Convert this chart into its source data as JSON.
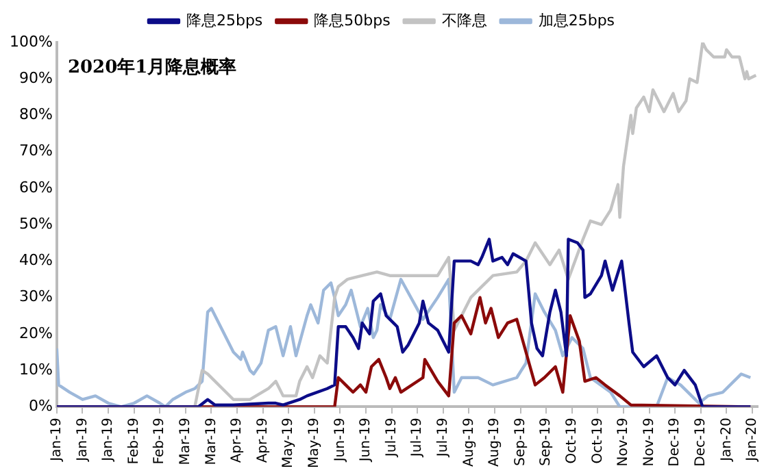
{
  "chart_data": {
    "type": "line",
    "annotations": [
      "2020年1月降息概率"
    ],
    "xlim": [
      "2019-01-02",
      "2020-01-18"
    ],
    "xticks": [
      {
        "value": "2019-01-02",
        "label": "Jan-19"
      },
      {
        "value": "2019-01-16",
        "label": "Jan-19"
      },
      {
        "value": "2019-01-30",
        "label": "Jan-19"
      },
      {
        "value": "2019-02-13",
        "label": "Feb-19"
      },
      {
        "value": "2019-02-27",
        "label": "Feb-19"
      },
      {
        "value": "2019-03-13",
        "label": "Mar-19"
      },
      {
        "value": "2019-03-27",
        "label": "Mar-19"
      },
      {
        "value": "2019-04-10",
        "label": "Apr-19"
      },
      {
        "value": "2019-04-24",
        "label": "Apr-19"
      },
      {
        "value": "2019-05-08",
        "label": "May-19"
      },
      {
        "value": "2019-05-22",
        "label": "May-19"
      },
      {
        "value": "2019-06-05",
        "label": "Jun-19"
      },
      {
        "value": "2019-06-19",
        "label": "Jun-19"
      },
      {
        "value": "2019-07-03",
        "label": "Jul-19"
      },
      {
        "value": "2019-07-17",
        "label": "Jul-19"
      },
      {
        "value": "2019-07-31",
        "label": "Jul-19"
      },
      {
        "value": "2019-08-14",
        "label": "Aug-19"
      },
      {
        "value": "2019-08-28",
        "label": "Aug-19"
      },
      {
        "value": "2019-09-11",
        "label": "Sep-19"
      },
      {
        "value": "2019-09-25",
        "label": "Sep-19"
      },
      {
        "value": "2019-10-09",
        "label": "Oct-19"
      },
      {
        "value": "2019-10-23",
        "label": "Oct-19"
      },
      {
        "value": "2019-11-06",
        "label": "Nov-19"
      },
      {
        "value": "2019-11-20",
        "label": "Nov-19"
      },
      {
        "value": "2019-12-04",
        "label": "Dec-19"
      },
      {
        "value": "2019-12-18",
        "label": "Dec-19"
      },
      {
        "value": "2020-01-01",
        "label": "Jan-20"
      },
      {
        "value": "2020-01-15",
        "label": "Jan-20"
      }
    ],
    "ylim": [
      0,
      100
    ],
    "yticks": [
      {
        "value": 0,
        "label": "0%"
      },
      {
        "value": 10,
        "label": "10%"
      },
      {
        "value": 20,
        "label": "20%"
      },
      {
        "value": 30,
        "label": "30%"
      },
      {
        "value": 40,
        "label": "40%"
      },
      {
        "value": 50,
        "label": "50%"
      },
      {
        "value": 60,
        "label": "60%"
      },
      {
        "value": 70,
        "label": "70%"
      },
      {
        "value": 80,
        "label": "80%"
      },
      {
        "value": 90,
        "label": "90%"
      },
      {
        "value": 100,
        "label": "100%"
      }
    ],
    "grid": false,
    "legend": "top",
    "marker": "none",
    "line_style": "solid",
    "series": [
      {
        "name": "降息25bps",
        "color": "#0c0c88",
        "x": [
          "2019-01-02",
          "2019-03-20",
          "2019-03-25",
          "2019-03-29",
          "2019-04-08",
          "2019-04-27",
          "2019-05-01",
          "2019-05-05",
          "2019-05-14",
          "2019-05-18",
          "2019-05-29",
          "2019-06-02",
          "2019-06-04",
          "2019-06-08",
          "2019-06-12",
          "2019-06-15",
          "2019-06-17",
          "2019-06-21",
          "2019-06-23",
          "2019-06-27",
          "2019-06-30",
          "2019-07-04",
          "2019-07-06",
          "2019-07-09",
          "2019-07-12",
          "2019-07-18",
          "2019-07-20",
          "2019-07-23",
          "2019-07-28",
          "2019-08-03",
          "2019-08-06",
          "2019-08-08",
          "2019-08-15",
          "2019-08-19",
          "2019-08-21",
          "2019-08-25",
          "2019-08-27",
          "2019-09-01",
          "2019-09-04",
          "2019-09-07",
          "2019-09-14",
          "2019-09-17",
          "2019-09-20",
          "2019-09-23",
          "2019-09-27",
          "2019-09-30",
          "2019-10-03",
          "2019-10-06",
          "2019-10-07",
          "2019-10-12",
          "2019-10-15",
          "2019-10-16",
          "2019-10-19",
          "2019-10-25",
          "2019-10-27",
          "2019-10-31",
          "2019-11-05",
          "2019-11-09",
          "2019-11-11",
          "2019-11-17",
          "2019-11-24",
          "2019-11-30",
          "2019-12-04",
          "2019-12-09",
          "2019-12-15",
          "2019-12-19",
          "2020-01-14"
        ],
        "values": [
          0,
          0,
          2,
          0.5,
          0.5,
          1,
          1,
          0.5,
          2,
          3,
          5,
          6,
          22,
          22,
          19,
          16,
          23,
          20,
          29,
          31,
          25,
          23,
          22,
          15,
          17,
          23,
          29,
          23,
          21,
          15,
          40,
          40,
          40,
          39,
          41,
          46,
          40,
          41,
          39,
          42,
          40,
          23,
          16,
          14,
          26,
          32,
          26,
          14,
          46,
          45,
          43,
          30,
          31,
          36,
          40,
          32,
          40,
          23,
          15,
          11,
          14,
          8,
          6,
          10,
          6,
          0,
          0
        ]
      },
      {
        "name": "降息50bps",
        "color": "#8b0a0a",
        "x": [
          "2019-01-02",
          "2019-06-02",
          "2019-06-04",
          "2019-06-08",
          "2019-06-12",
          "2019-06-16",
          "2019-06-19",
          "2019-06-22",
          "2019-06-26",
          "2019-06-30",
          "2019-07-02",
          "2019-07-05",
          "2019-07-08",
          "2019-07-20",
          "2019-07-21",
          "2019-07-28",
          "2019-08-03",
          "2019-08-06",
          "2019-08-10",
          "2019-08-15",
          "2019-08-20",
          "2019-08-23",
          "2019-08-26",
          "2019-08-30",
          "2019-09-04",
          "2019-09-09",
          "2019-09-14",
          "2019-09-19",
          "2019-09-24",
          "2019-09-30",
          "2019-10-04",
          "2019-10-08",
          "2019-10-13",
          "2019-10-16",
          "2019-10-22",
          "2019-10-27",
          "2019-11-04",
          "2019-11-10",
          "2020-01-14"
        ],
        "values": [
          0,
          0,
          8,
          6,
          4,
          6,
          4,
          11,
          13,
          8,
          5,
          8,
          4,
          8,
          13,
          7,
          3,
          23,
          25,
          20,
          30,
          23,
          27,
          19,
          23,
          24,
          15,
          6,
          8,
          11,
          4,
          25,
          18,
          7,
          8,
          6,
          3,
          0.5,
          0
        ]
      },
      {
        "name": "不降息",
        "color": "#c3c3c3",
        "x": [
          "2019-01-02",
          "2019-03-18",
          "2019-03-22",
          "2019-03-25",
          "2019-04-02",
          "2019-04-08",
          "2019-04-17",
          "2019-04-27",
          "2019-05-01",
          "2019-05-05",
          "2019-05-12",
          "2019-05-14",
          "2019-05-18",
          "2019-05-21",
          "2019-05-25",
          "2019-05-29",
          "2019-06-02",
          "2019-06-04",
          "2019-06-09",
          "2019-06-17",
          "2019-06-25",
          "2019-07-02",
          "2019-07-09",
          "2019-07-28",
          "2019-08-03",
          "2019-08-06",
          "2019-08-15",
          "2019-08-21",
          "2019-08-27",
          "2019-09-09",
          "2019-09-14",
          "2019-09-19",
          "2019-09-27",
          "2019-10-02",
          "2019-10-07",
          "2019-10-15",
          "2019-10-19",
          "2019-10-25",
          "2019-10-30",
          "2019-11-03",
          "2019-11-04",
          "2019-11-06",
          "2019-11-10",
          "2019-11-11",
          "2019-11-13",
          "2019-11-17",
          "2019-11-20",
          "2019-11-22",
          "2019-11-28",
          "2019-12-03",
          "2019-12-06",
          "2019-12-10",
          "2019-12-12",
          "2019-12-16",
          "2019-12-19",
          "2019-12-21",
          "2019-12-25",
          "2019-12-31",
          "2020-01-01",
          "2020-01-04",
          "2020-01-08",
          "2020-01-11",
          "2020-01-12",
          "2020-01-13",
          "2020-01-17"
        ],
        "values": [
          0,
          0,
          10,
          9,
          5,
          2,
          2,
          5,
          7,
          3,
          3,
          7,
          11,
          8,
          14,
          12,
          30,
          33,
          35,
          36,
          37,
          36,
          36,
          36,
          41,
          21,
          30,
          33,
          36,
          37,
          40,
          45,
          39,
          43,
          35,
          46,
          51,
          50,
          54,
          61,
          52,
          66,
          80,
          75,
          82,
          85,
          81,
          87,
          81,
          86,
          81,
          84,
          90,
          89,
          100,
          98,
          96,
          96,
          98,
          96,
          96,
          90,
          92,
          90,
          91
        ]
      },
      {
        "name": "加息25bps",
        "color": "#9db8da",
        "x": [
          "2019-01-02",
          "2019-01-03",
          "2019-01-09",
          "2019-01-16",
          "2019-01-23",
          "2019-01-30",
          "2019-02-06",
          "2019-02-13",
          "2019-02-20",
          "2019-02-27",
          "2019-03-02",
          "2019-03-06",
          "2019-03-13",
          "2019-03-18",
          "2019-03-22",
          "2019-03-25",
          "2019-03-27",
          "2019-04-02",
          "2019-04-08",
          "2019-04-12",
          "2019-04-13",
          "2019-04-17",
          "2019-04-19",
          "2019-04-23",
          "2019-04-27",
          "2019-05-01",
          "2019-05-05",
          "2019-05-09",
          "2019-05-12",
          "2019-05-18",
          "2019-05-20",
          "2019-05-24",
          "2019-05-27",
          "2019-05-31",
          "2019-06-02",
          "2019-06-04",
          "2019-06-08",
          "2019-06-11",
          "2019-06-16",
          "2019-06-20",
          "2019-06-23",
          "2019-06-25",
          "2019-06-27",
          "2019-07-02",
          "2019-07-08",
          "2019-07-20",
          "2019-07-28",
          "2019-08-03",
          "2019-08-06",
          "2019-08-10",
          "2019-08-19",
          "2019-08-27",
          "2019-09-09",
          "2019-09-14",
          "2019-09-19",
          "2019-09-24",
          "2019-09-30",
          "2019-10-04",
          "2019-10-09",
          "2019-10-15",
          "2019-10-19",
          "2019-10-30",
          "2019-11-04",
          "2019-11-24",
          "2019-11-30",
          "2019-12-07",
          "2019-12-17",
          "2019-12-22",
          "2019-12-30",
          "2020-01-09",
          "2020-01-14"
        ],
        "values": [
          16,
          6,
          4,
          2,
          3,
          1,
          0,
          1,
          3,
          1,
          0,
          2,
          4,
          5,
          7,
          26,
          27,
          21,
          15,
          13,
          15,
          10,
          9,
          12,
          21,
          22,
          14,
          22,
          14,
          25,
          28,
          23,
          32,
          34,
          30,
          25,
          28,
          32,
          22,
          27,
          19,
          21,
          28,
          24,
          35,
          24,
          30,
          35,
          4,
          8,
          8,
          6,
          8,
          12,
          31,
          26,
          21,
          14,
          19,
          16,
          8,
          4,
          0,
          0,
          8,
          6,
          1,
          3,
          4,
          9,
          8
        ]
      }
    ]
  }
}
